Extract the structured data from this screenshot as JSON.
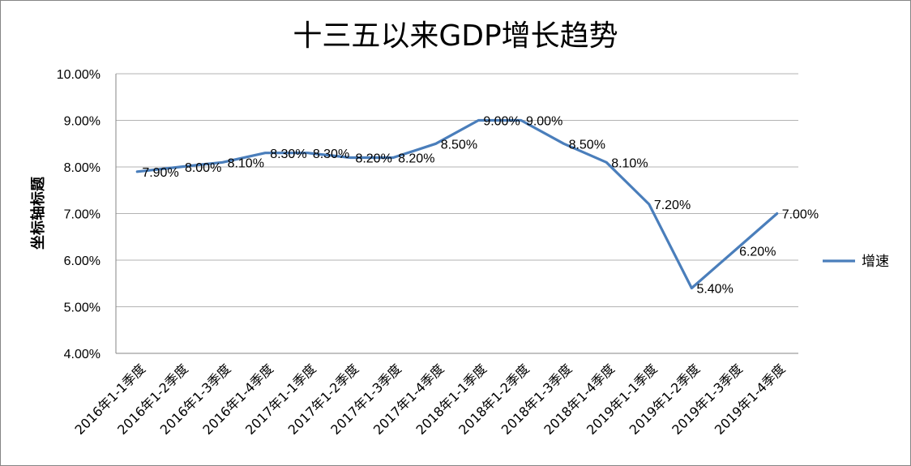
{
  "chart_data": {
    "type": "line",
    "title": "十三五以来GDP增长趋势",
    "xlabel": "",
    "ylabel": "坐标轴标题",
    "ylim": [
      4,
      10
    ],
    "y_ticks": [
      "4.00%",
      "5.00%",
      "6.00%",
      "7.00%",
      "8.00%",
      "9.00%",
      "10.00%"
    ],
    "grid": true,
    "legend_position": "right",
    "categories": [
      "2016年1-1季度",
      "2016年1-2季度",
      "2016年1-3季度",
      "2016年1-4季度",
      "2017年1-1季度",
      "2017年1-2季度",
      "2017年1-3季度",
      "2017年1-4季度",
      "2018年1-1季度",
      "2018年1-2季度",
      "2018年1-3季度",
      "2018年1-4季度",
      "2019年1-1季度",
      "2019年1-2季度",
      "2019年1-3季度",
      "2019年1-4季度"
    ],
    "series": [
      {
        "name": "增速",
        "color": "#4a7ebb",
        "values": [
          7.9,
          8.0,
          8.1,
          8.3,
          8.3,
          8.2,
          8.2,
          8.5,
          9.0,
          9.0,
          8.5,
          8.1,
          7.2,
          5.4,
          6.2,
          7.0
        ],
        "data_labels": [
          "7.90%",
          "8.00%",
          "8.10%",
          "8.30%",
          "8.30%",
          "8.20%",
          "8.20%",
          "8.50%",
          "9.00%",
          "9.00%",
          "8.50%",
          "8.10%",
          "7.20%",
          "5.40%",
          "6.20%",
          "7.00%"
        ]
      }
    ]
  }
}
